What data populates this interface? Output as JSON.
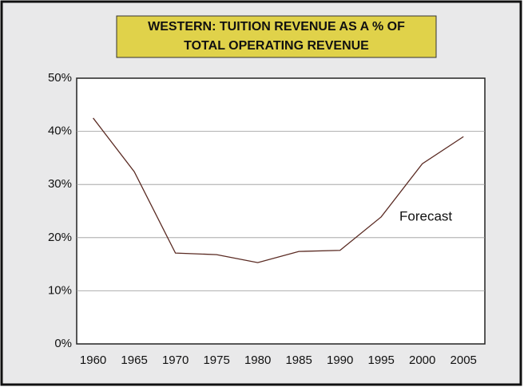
{
  "chart_data": {
    "type": "line",
    "title": [
      "WESTERN: TUITION REVENUE AS A % OF",
      "TOTAL OPERATING REVENUE"
    ],
    "x": [
      1960,
      1965,
      1970,
      1975,
      1980,
      1985,
      1990,
      1995,
      2000,
      2005
    ],
    "values": [
      42.5,
      32.4,
      17.1,
      16.8,
      15.3,
      17.4,
      17.6,
      23.9,
      33.9,
      39.0
    ],
    "color": "#5a2a22",
    "xlim": [
      1958,
      2007.6
    ],
    "ylim": [
      0,
      50
    ],
    "yticks": [
      {
        "value": 0,
        "label": "0%"
      },
      {
        "value": 10,
        "label": "10%"
      },
      {
        "value": 20,
        "label": "20%"
      },
      {
        "value": 30,
        "label": "30%"
      },
      {
        "value": 40,
        "label": "40%"
      },
      {
        "value": 50,
        "label": "50%"
      }
    ],
    "grid": true,
    "annotation": "Forecast"
  }
}
